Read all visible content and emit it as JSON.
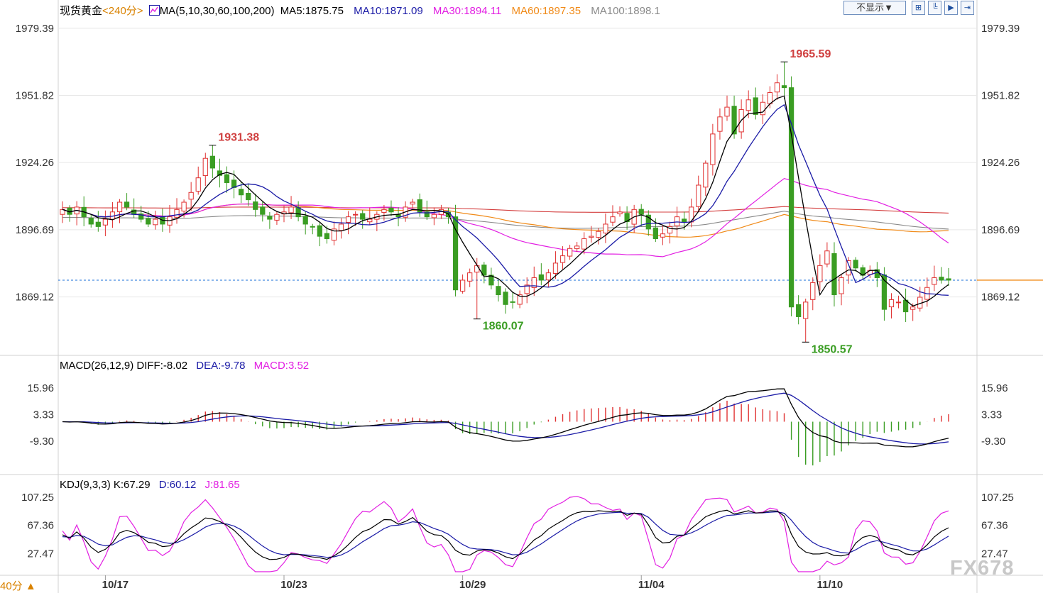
{
  "header": {
    "instrument": "现货黄金",
    "period": "<240分>",
    "ma_label": "MA(5,10,30,60,100,200)",
    "ma_values": [
      {
        "text": "MA5:1875.75",
        "color": "#000000"
      },
      {
        "text": "MA10:1871.09",
        "color": "#1a1aa6"
      },
      {
        "text": "MA30:1894.11",
        "color": "#e21ee2"
      },
      {
        "text": "MA60:1897.35",
        "color": "#f08a18"
      },
      {
        "text": "MA100:1898.1",
        "color": "#8a8a8a"
      }
    ],
    "display_toggle": "不显示▼",
    "tool_icons": [
      "expand-icon",
      "compare-icon",
      "play-icon",
      "next-icon"
    ]
  },
  "macd_header": {
    "label": "MACD(26,12,9)",
    "diff": "DIFF:-8.02",
    "dea": "DEA:-9.78",
    "macd": "MACD:3.52"
  },
  "kdj_header": {
    "label": "KDJ(9,3,3)",
    "k": "K:67.29",
    "d": "D:60.12",
    "j": "J:81.65"
  },
  "watermark": "FX678",
  "period_label": "40分 ▲",
  "colors": {
    "up": "#e03131",
    "down": "#3a9d23",
    "ma5": "#000000",
    "ma10": "#1a1aa6",
    "ma30": "#e21ee2",
    "ma60": "#f08a18",
    "ma100": "#8a8a8a",
    "ma200": "#d43f3f",
    "current_price_line": "#1a6fd8",
    "grid": "#e8e8e8"
  },
  "chart_data": {
    "type": "candlestick",
    "price_axis_ticks": [
      "1979.39",
      "1951.82",
      "1924.26",
      "1896.69",
      "1869.12"
    ],
    "price_range": [
      1846,
      1984
    ],
    "current_price": 1876,
    "x_date_labels": [
      {
        "label": "10/17",
        "index": 6
      },
      {
        "label": "10/23",
        "index": 31
      },
      {
        "label": "10/29",
        "index": 56
      },
      {
        "label": "11/04",
        "index": 81
      },
      {
        "label": "11/10",
        "index": 106
      }
    ],
    "annotations": [
      {
        "text": "1931.38",
        "index": 21,
        "price": 1931.38,
        "kind": "high"
      },
      {
        "text": "1860.07",
        "index": 58,
        "price": 1860.07,
        "kind": "low"
      },
      {
        "text": "1965.59",
        "index": 101,
        "price": 1965.59,
        "kind": "high"
      },
      {
        "text": "1850.57",
        "index": 104,
        "price": 1850.57,
        "kind": "low"
      }
    ],
    "closes": [
      1905,
      1903,
      1906,
      1902,
      1899,
      1898,
      1901,
      1904,
      1908,
      1906,
      1903,
      1901,
      1899,
      1901,
      1899,
      1902,
      1905,
      1908,
      1912,
      1918,
      1926,
      1922,
      1919,
      1916,
      1914,
      1911,
      1909,
      1905,
      1903,
      1901,
      1903,
      1904,
      1906,
      1902,
      1899,
      1898,
      1894,
      1893,
      1897,
      1899,
      1902,
      1903,
      1901,
      1901,
      1903,
      1905,
      1904,
      1902,
      1906,
      1908,
      1904,
      1902,
      1903,
      1905,
      1902,
      1872,
      1876,
      1879,
      1882,
      1878,
      1874,
      1870,
      1866,
      1867,
      1870,
      1874,
      1877,
      1876,
      1879,
      1883,
      1886,
      1889,
      1890,
      1893,
      1894,
      1896,
      1899,
      1902,
      1904,
      1900,
      1905,
      1903,
      1897,
      1893,
      1895,
      1898,
      1902,
      1900,
      1906,
      1915,
      1924,
      1936,
      1943,
      1947,
      1936,
      1946,
      1950,
      1944,
      1949,
      1953,
      1957,
      1955,
      1865,
      1861,
      1867,
      1875,
      1882,
      1888,
      1870,
      1877,
      1884,
      1881,
      1878,
      1880,
      1877,
      1864,
      1868,
      1867,
      1863,
      1865,
      1869,
      1873,
      1877,
      1876,
      1876
    ],
    "macd_axis_ticks": [
      "15.96",
      "3.33",
      "-9.30"
    ],
    "macd_range": [
      -24,
      25
    ],
    "kdj_axis_ticks": [
      "107.25",
      "67.36",
      "27.47"
    ],
    "kdj_range": [
      0,
      120
    ],
    "last_values": {
      "diff": -8.02,
      "dea": -9.78,
      "macd": 3.52,
      "k": 67.29,
      "d": 60.12,
      "j": 81.65
    }
  }
}
